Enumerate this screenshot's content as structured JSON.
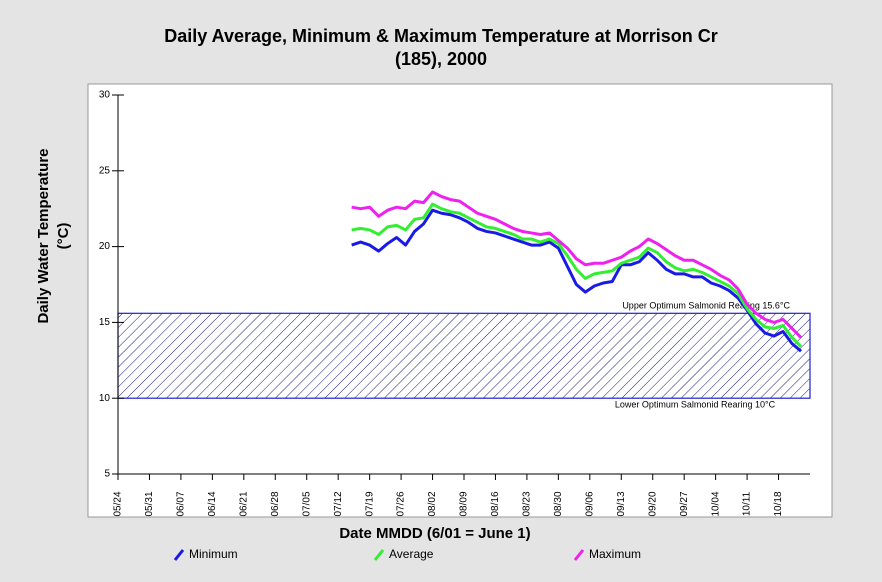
{
  "chart_data": {
    "type": "line",
    "title": [
      "Daily Average, Minimum & Maximum Temperature at Morrison Cr",
      "(185), 2000"
    ],
    "ylabel": [
      "Daily Water Temperature",
      "(°C)"
    ],
    "xlabel": "Date MMDD (6/01 = June 1)",
    "xlim": [
      "05/24",
      "10/25"
    ],
    "xticks": [
      "05/24",
      "05/31",
      "06/07",
      "06/14",
      "06/21",
      "06/28",
      "07/05",
      "07/12",
      "07/19",
      "07/26",
      "08/02",
      "08/09",
      "08/16",
      "08/23",
      "08/30",
      "09/06",
      "09/13",
      "09/20",
      "09/27",
      "10/04",
      "10/11",
      "10/18"
    ],
    "ylim": [
      5,
      30
    ],
    "yticks": [
      5,
      10,
      15,
      20,
      25,
      30
    ],
    "bands": [
      {
        "label": "Upper Optimum Salmonid Rearing 15.6°C",
        "value": 15.6
      },
      {
        "label": "Lower Optimum Salmonid Rearing 10°C",
        "value": 10
      }
    ],
    "x": [
      "07/15",
      "07/17",
      "07/19",
      "07/21",
      "07/23",
      "07/25",
      "07/27",
      "07/29",
      "07/31",
      "08/02",
      "08/04",
      "08/06",
      "08/08",
      "08/10",
      "08/12",
      "08/14",
      "08/16",
      "08/18",
      "08/20",
      "08/22",
      "08/24",
      "08/26",
      "08/28",
      "08/30",
      "09/01",
      "09/03",
      "09/05",
      "09/07",
      "09/09",
      "09/11",
      "09/13",
      "09/15",
      "09/17",
      "09/19",
      "09/21",
      "09/23",
      "09/25",
      "09/27",
      "09/29",
      "10/01",
      "10/03",
      "10/05",
      "10/07",
      "10/09",
      "10/11",
      "10/13",
      "10/15",
      "10/17",
      "10/19",
      "10/21",
      "10/23"
    ],
    "series": [
      {
        "name": "Minimum",
        "color": "#1a1ae6",
        "values": [
          20.1,
          20.3,
          20.1,
          19.7,
          20.2,
          20.6,
          20.1,
          21.0,
          21.5,
          22.4,
          22.2,
          22.1,
          21.9,
          21.6,
          21.2,
          21.0,
          20.9,
          20.7,
          20.5,
          20.3,
          20.1,
          20.1,
          20.3,
          19.9,
          18.7,
          17.5,
          17.0,
          17.4,
          17.6,
          17.7,
          18.8,
          18.8,
          19.0,
          19.6,
          19.1,
          18.5,
          18.2,
          18.2,
          18.0,
          18.0,
          17.6,
          17.4,
          17.1,
          16.6,
          15.8,
          14.9,
          14.3,
          14.1,
          14.4,
          13.6,
          13.1
        ]
      },
      {
        "name": "Average",
        "color": "#33ee33",
        "values": [
          21.1,
          21.2,
          21.1,
          20.8,
          21.3,
          21.4,
          21.1,
          21.8,
          21.9,
          22.8,
          22.5,
          22.3,
          22.2,
          21.9,
          21.6,
          21.3,
          21.2,
          21.0,
          20.8,
          20.5,
          20.5,
          20.3,
          20.5,
          20.2,
          19.4,
          18.5,
          17.9,
          18.2,
          18.3,
          18.4,
          18.9,
          19.1,
          19.3,
          19.9,
          19.6,
          19.0,
          18.6,
          18.4,
          18.5,
          18.3,
          18.0,
          17.7,
          17.4,
          16.9,
          15.9,
          15.2,
          14.7,
          14.6,
          14.8,
          14.0,
          13.4
        ]
      },
      {
        "name": "Maximum",
        "color": "#ee22ee",
        "values": [
          22.6,
          22.5,
          22.6,
          22.0,
          22.4,
          22.6,
          22.5,
          23.0,
          22.9,
          23.6,
          23.3,
          23.1,
          23.0,
          22.6,
          22.2,
          22.0,
          21.8,
          21.5,
          21.2,
          21.0,
          20.9,
          20.8,
          20.9,
          20.4,
          19.9,
          19.2,
          18.8,
          18.9,
          18.9,
          19.1,
          19.3,
          19.7,
          20.0,
          20.5,
          20.2,
          19.8,
          19.4,
          19.1,
          19.1,
          18.8,
          18.5,
          18.1,
          17.8,
          17.2,
          16.2,
          15.6,
          15.2,
          15.0,
          15.2,
          14.6,
          14.0
        ]
      }
    ]
  }
}
